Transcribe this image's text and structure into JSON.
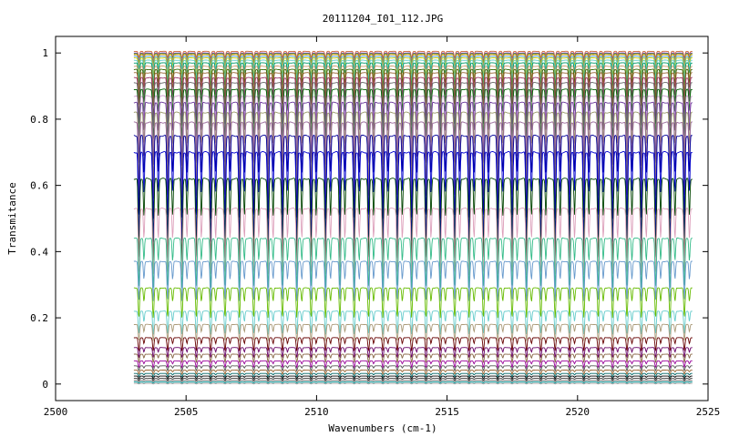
{
  "chart_data": {
    "type": "line",
    "title": "20111204_I01_112.JPG",
    "xlabel": "Wavenumbers (cm-1)",
    "ylabel": "Transmitance",
    "xlim": [
      2500,
      2525
    ],
    "ylim": [
      -0.05,
      1.05
    ],
    "x_ticks": [
      2500,
      2505,
      2510,
      2515,
      2520,
      2525
    ],
    "x_tick_labels": [
      "2500",
      "2505",
      "2510",
      "2515",
      "2520",
      "2525"
    ],
    "y_ticks": [
      0,
      0.2,
      0.4,
      0.6,
      0.8,
      1
    ],
    "y_tick_labels": [
      "0",
      "0.2",
      "0.4",
      "0.6",
      "0.8",
      "1"
    ],
    "x_range_data": [
      2503.0,
      2524.4
    ],
    "line_spacing_cm1": 0.55,
    "grid": false,
    "legend": "none",
    "series": [
      {
        "baseline": 1.005,
        "depth": 0.02,
        "color": "#cc6633"
      },
      {
        "baseline": 1.0,
        "depth": 0.025,
        "color": "#9933cc"
      },
      {
        "baseline": 0.998,
        "depth": 0.03,
        "color": "#33aa33"
      },
      {
        "baseline": 0.995,
        "depth": 0.035,
        "color": "#ff9900"
      },
      {
        "baseline": 0.99,
        "depth": 0.04,
        "color": "#3399ff"
      },
      {
        "baseline": 0.985,
        "depth": 0.05,
        "color": "#cccc00"
      },
      {
        "baseline": 0.978,
        "depth": 0.06,
        "color": "#66cccc"
      },
      {
        "baseline": 0.97,
        "depth": 0.07,
        "color": "#009966"
      },
      {
        "baseline": 0.96,
        "depth": 0.08,
        "color": "#cc9966"
      },
      {
        "baseline": 0.95,
        "depth": 0.09,
        "color": "#336600"
      },
      {
        "baseline": 0.94,
        "depth": 0.1,
        "color": "#996633"
      },
      {
        "baseline": 0.925,
        "depth": 0.12,
        "color": "#993366"
      },
      {
        "baseline": 0.91,
        "depth": 0.13,
        "color": "#666666"
      },
      {
        "baseline": 0.89,
        "depth": 0.15,
        "color": "#006600"
      },
      {
        "baseline": 0.87,
        "depth": 0.17,
        "color": "#cc99cc"
      },
      {
        "baseline": 0.85,
        "depth": 0.19,
        "color": "#663399"
      },
      {
        "baseline": 0.82,
        "depth": 0.21,
        "color": "#999966"
      },
      {
        "baseline": 0.79,
        "depth": 0.23,
        "color": "#996699"
      },
      {
        "baseline": 0.75,
        "depth": 0.25,
        "color": "#000099"
      },
      {
        "baseline": 0.7,
        "depth": 0.27,
        "color": "#0000cc"
      },
      {
        "baseline": 0.62,
        "depth": 0.25,
        "color": "#004400"
      },
      {
        "baseline": 0.53,
        "depth": 0.2,
        "color": "#dda0bb"
      },
      {
        "baseline": 0.44,
        "depth": 0.15,
        "color": "#33bb88"
      },
      {
        "baseline": 0.37,
        "depth": 0.12,
        "color": "#6699cc"
      },
      {
        "baseline": 0.29,
        "depth": 0.09,
        "color": "#66bb00"
      },
      {
        "baseline": 0.22,
        "depth": 0.07,
        "color": "#66cccc"
      },
      {
        "baseline": 0.18,
        "depth": 0.05,
        "color": "#aa9977"
      },
      {
        "baseline": 0.14,
        "depth": 0.04,
        "color": "#660000"
      },
      {
        "baseline": 0.11,
        "depth": 0.03,
        "color": "#660066"
      },
      {
        "baseline": 0.09,
        "depth": 0.025,
        "color": "#886644"
      },
      {
        "baseline": 0.07,
        "depth": 0.02,
        "color": "#990099"
      },
      {
        "baseline": 0.055,
        "depth": 0.015,
        "color": "#555555"
      },
      {
        "baseline": 0.042,
        "depth": 0.012,
        "color": "#996633"
      },
      {
        "baseline": 0.032,
        "depth": 0.01,
        "color": "#006666"
      },
      {
        "baseline": 0.024,
        "depth": 0.008,
        "color": "#000000"
      },
      {
        "baseline": 0.017,
        "depth": 0.006,
        "color": "#333333"
      },
      {
        "baseline": 0.011,
        "depth": 0.004,
        "color": "#666666"
      },
      {
        "baseline": 0.006,
        "depth": 0.003,
        "color": "#009999"
      },
      {
        "baseline": 0.002,
        "depth": 0.002,
        "color": "#999999"
      }
    ]
  }
}
